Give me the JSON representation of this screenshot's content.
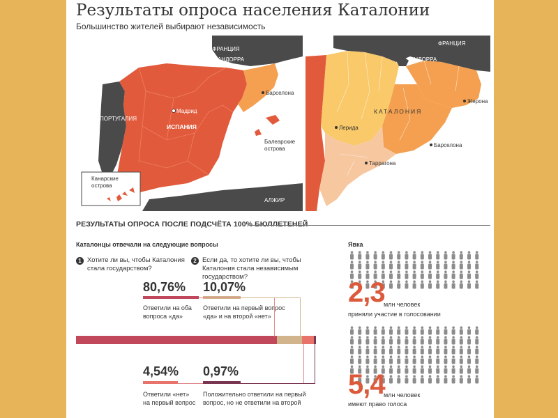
{
  "title": "Результаты опроса населения Каталонии",
  "subtitle": "Большинство жителей выбирают независимость",
  "map_left": {
    "labels": {
      "france": "ФРАНЦИЯ",
      "andorra": "АНДОРРА",
      "portugal": "ПОРТУГАЛИЯ",
      "spain": "ИСПАНИЯ",
      "madrid": "Мадрид",
      "barcelona": "Барселона",
      "balearic": "Балеарские острова",
      "canary": "Канарские острова",
      "algeria": "АЛЖИР"
    }
  },
  "map_right": {
    "labels": {
      "france": "ФРАНЦИЯ",
      "andorra": "АНДОРРА",
      "catalonia": "КАТАЛОНИЯ",
      "lleida": "Лерида",
      "girona": "Жерона",
      "barcelona": "Барселона",
      "tarragona": "Таррагона"
    }
  },
  "section_title": "РЕЗУЛЬТАТЫ ОПРОСА ПОСЛЕ ПОДСЧЁТА 100% БЮЛЛЕТЕНЕЙ",
  "questions": {
    "header": "Каталонцы отвечали на следующие вопросы",
    "q1": {
      "num": "1",
      "text": "Хотите ли вы, чтобы Каталония стала государством?"
    },
    "q2": {
      "num": "2",
      "text": "Если да, то хотите ли вы, чтобы Каталония стала независимым государством?"
    }
  },
  "results": [
    {
      "value": "80,76%",
      "share": 80.76,
      "label_line1": "Ответили на оба",
      "label_line2": "вопроса «да»",
      "color": "#c0485a"
    },
    {
      "value": "10,07%",
      "share": 10.07,
      "label_line1": "Ответили на первый вопрос",
      "label_line2": "«да» и на второй «нет»",
      "color": "#d2b48c"
    },
    {
      "value": "4,54%",
      "share": 4.54,
      "label_line1": "Ответили «нет»",
      "label_line2": "на первый вопрос",
      "color": "#e8736a"
    },
    {
      "value": "0,97%",
      "share": 0.97,
      "label_line1": "Положительно ответили на первый",
      "label_line2": "вопрос, но не ответили на второй",
      "color": "#7a3550"
    }
  ],
  "turnout": {
    "title": "Явка",
    "participated": {
      "value": "2,3",
      "unit": "млн человек",
      "text": "приняли участие в голосовании",
      "icons_highlight": 0
    },
    "eligible": {
      "value": "5,4",
      "unit": "млн человек",
      "text": "имеют право голоса"
    }
  },
  "colors": {
    "spain": "#e25a3c",
    "catalonia_left": "#f4a050",
    "dark": "#4a4a4a",
    "water": "#ffffff",
    "cat_yellow": "#f9c96a",
    "cat_orange": "#f4a050",
    "cat_peach": "#f7c7a0",
    "accent_red": "#dc5a3c",
    "people": "#8c8c8c"
  }
}
